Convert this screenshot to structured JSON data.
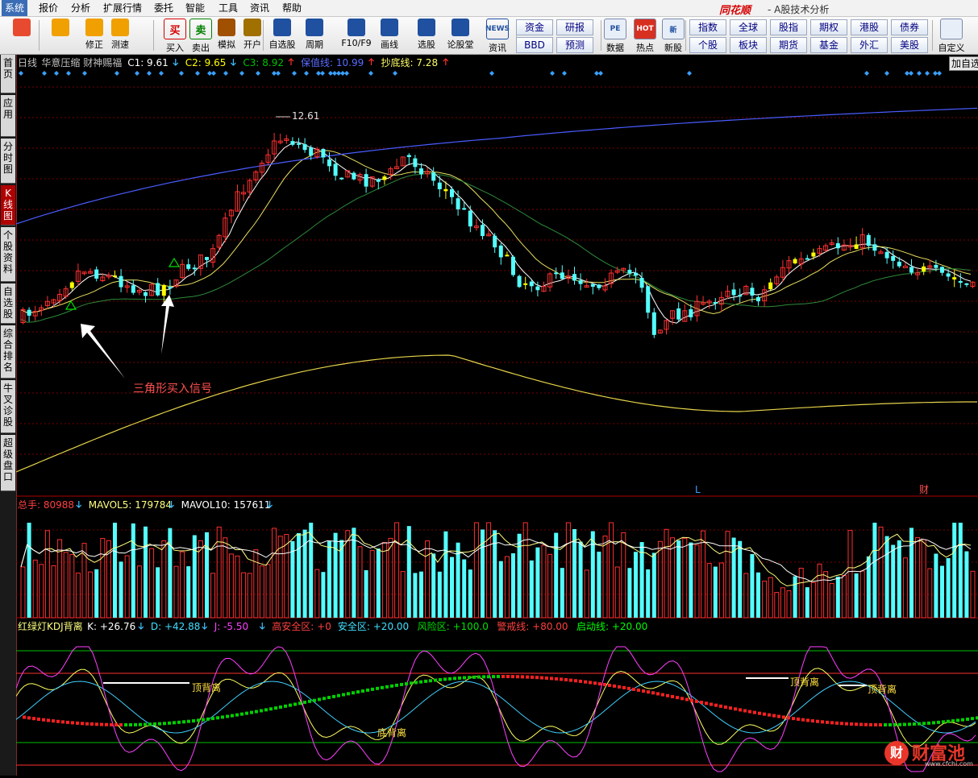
{
  "menu": {
    "items": [
      "系统",
      "报价",
      "分析",
      "扩展行情",
      "委托",
      "智能",
      "工具",
      "资讯",
      "帮助"
    ],
    "active": 0,
    "brand": "同花顺",
    "subtitle": "- A股技术分析"
  },
  "toolbar": {
    "buttons": [
      {
        "label": "",
        "icon": "grid-icon",
        "color": "#e84a2f"
      },
      {
        "label": "",
        "icon": "back-arrow-icon",
        "color": "#f0a000"
      },
      {
        "label": "修正",
        "icon": "updown-arrow-icon",
        "color": "#f0a000"
      },
      {
        "label": "测速",
        "icon": "speed-icon",
        "color": "#f0a000"
      },
      {
        "label": "买入",
        "icon": "buy-icon",
        "color": "#d40000",
        "glyph": "买"
      },
      {
        "label": "卖出",
        "icon": "sell-icon",
        "color": "#008000",
        "glyph": "卖"
      },
      {
        "label": "模拟",
        "icon": "hammer-icon",
        "color": "#a05000"
      },
      {
        "label": "开户",
        "icon": "lock-icon",
        "color": "#a07000"
      },
      {
        "label": "自选股",
        "icon": "star-icon",
        "color": "#2050a0"
      },
      {
        "label": "周期",
        "icon": "clock-icon",
        "color": "#2050a0"
      },
      {
        "label": "F10/F9",
        "icon": "document-icon",
        "color": "#2050a0"
      },
      {
        "label": "画线",
        "icon": "pen-icon",
        "color": "#2050a0"
      },
      {
        "label": "选股",
        "icon": "monitor-icon",
        "color": "#2050a0"
      },
      {
        "label": "论股堂",
        "icon": "forum-icon",
        "color": "#2050a0"
      },
      {
        "label": "资讯",
        "icon": "news-icon",
        "color": "#2050a0",
        "glyph": "NEWS"
      }
    ],
    "group1": [
      "资金",
      "BBD",
      "研报",
      "预测"
    ],
    "buttons2": [
      {
        "label": "数据",
        "icon": "pe-icon",
        "glyph": "PE"
      },
      {
        "label": "热点",
        "icon": "hot-icon",
        "glyph": "HOT"
      },
      {
        "label": "新股",
        "icon": "new-stock-icon",
        "glyph": "新"
      }
    ],
    "group2": [
      "指数",
      "全球",
      "股指",
      "期权",
      "港股",
      "债券",
      "个股",
      "板块",
      "期货",
      "基金",
      "外汇",
      "美股"
    ],
    "custom": "自定义"
  },
  "sidebar": {
    "tabs": [
      "首页",
      "应用",
      "分时图",
      "K线图",
      "个股资料",
      "自选股",
      "综合排名",
      "牛叉诊股",
      "超级盘口"
    ],
    "active": 3
  },
  "main": {
    "indicator_line": [
      {
        "text": "日线",
        "color": "#c0c0c0"
      },
      {
        "text": "华意压缩 财神赐福",
        "color": "#c0c0c0"
      },
      {
        "text": "C1: 9.61",
        "color": "#ffffff",
        "arrow": "down"
      },
      {
        "text": "C2: 9.65",
        "color": "#ffff00",
        "arrow": "down"
      },
      {
        "text": "C3: 8.92",
        "color": "#00c000",
        "arrow": "up"
      },
      {
        "text": "保值线: 10.99",
        "color": "#5a6cff",
        "arrow": "up"
      },
      {
        "text": "抄底线: 7.28",
        "color": "#ffff66",
        "arrow": "up"
      }
    ],
    "add_watch": "加自选",
    "high_label": "12.61",
    "annotation": "三角形买入信号",
    "marker_L": "L",
    "marker_cai": "财"
  },
  "volume": {
    "labels": [
      {
        "text": "总手: 80988",
        "color": "#ff4040",
        "arrow": "down"
      },
      {
        "text": "MAVOL5: 179784",
        "color": "#ffff80",
        "arrow": "down"
      },
      {
        "text": "MAVOL10: 157611",
        "color": "#ffffff",
        "arrow": "down"
      }
    ]
  },
  "kdj": {
    "labels": [
      {
        "text": "红绿灯KDJ背离",
        "color": "#ffff80"
      },
      {
        "text": "K: +26.76",
        "color": "#ffffff",
        "arrow": "down"
      },
      {
        "text": "D: +42.88",
        "color": "#40e0ff",
        "arrow": "down"
      },
      {
        "text": "J: -5.50",
        "color": "#ff40ff",
        "arrow": "down"
      },
      {
        "text": "高安全区: +0",
        "color": "#ff4040"
      },
      {
        "text": "安全区: +20.00",
        "color": "#40e0ff"
      },
      {
        "text": "风险区: +100.0",
        "color": "#00e000"
      },
      {
        "text": "警戒线: +80.00",
        "color": "#ff4040"
      },
      {
        "text": "启动线: +20.00",
        "color": "#00ff00"
      }
    ],
    "divergence_top": "顶背离",
    "divergence_bottom": "底背离"
  },
  "watermark": {
    "glyph": "财",
    "name": "财富池",
    "url": "www.cfchi.com"
  },
  "colors": {
    "up": "#ff3030",
    "down": "#54ffff",
    "signal": "#ffff00"
  }
}
